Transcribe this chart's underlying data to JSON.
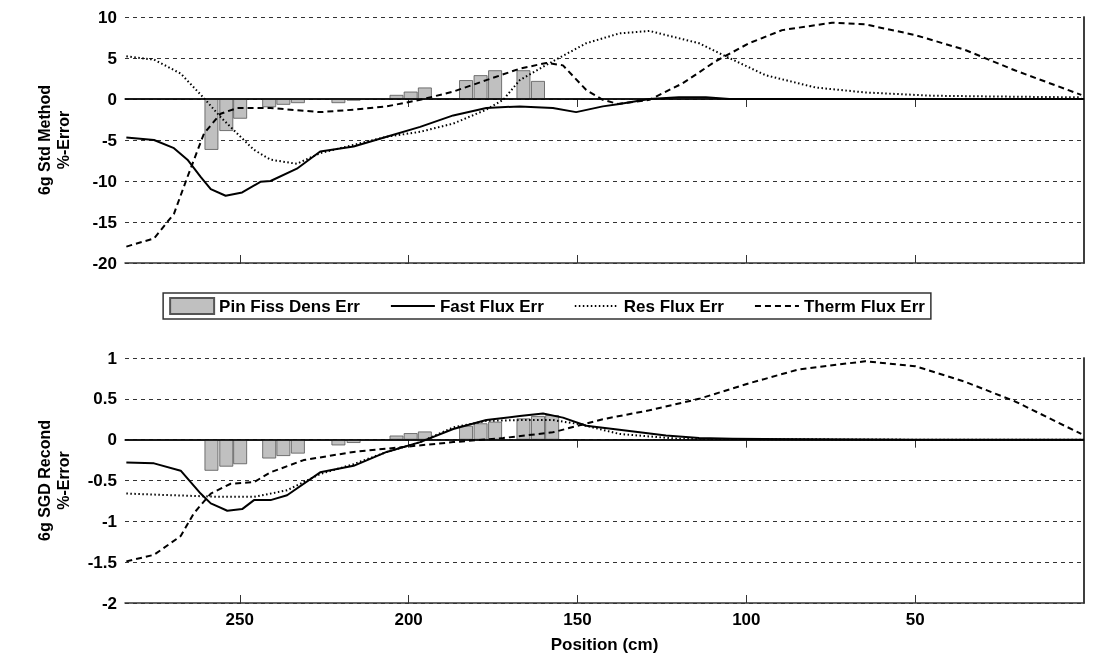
{
  "chart_data": [
    {
      "type": "line",
      "ylabel": "6g Std Method\n%-Error",
      "xlim": [
        284,
        0
      ],
      "xticks": [
        250,
        200,
        150,
        100,
        50
      ],
      "ylim": [
        -20,
        10
      ],
      "yticks": [
        -20,
        -15,
        -10,
        -5,
        0,
        5,
        10
      ],
      "grid": "y",
      "tick_labels": "y",
      "legend": "bottom",
      "marker": "none",
      "ref_lines": [
        {
          "axis": "y",
          "value": 0,
          "color": "#000000",
          "line_style": "solid"
        }
      ],
      "series": [
        {
          "name": "Pin Fiss Dens Err",
          "type": "bar",
          "color": "#c0c0c0",
          "x": [
            258.4,
            254.0,
            249.9,
            241.3,
            237.1,
            232.8,
            220.8,
            216.3,
            203.6,
            199.4,
            195.2,
            183.0,
            178.7,
            174.4,
            166.0,
            161.7,
            157.5
          ],
          "values": [
            -6.2,
            -3.9,
            -2.4,
            -1.0,
            -0.7,
            -0.5,
            -0.5,
            -0.2,
            0.5,
            0.9,
            1.4,
            2.3,
            2.9,
            3.5,
            3.5,
            2.2,
            0.1
          ]
        },
        {
          "name": "Fast Flux Err",
          "color": "#000000",
          "line_style": "solid",
          "x": [
            283.6,
            275.4,
            269.5,
            265.5,
            261.6,
            258.6,
            254.2,
            249.3,
            243.9,
            240.9,
            233.1,
            226.2,
            216.3,
            206.5,
            196.6,
            186.8,
            177.0,
            167.1,
            157.3,
            150.4,
            142.5,
            137.6,
            128.7,
            120,
            112,
            105,
            50,
            0
          ],
          "values": [
            -4.7,
            -5.0,
            -6.0,
            -7.4,
            -9.5,
            -11.0,
            -11.8,
            -11.4,
            -10.1,
            -10.0,
            -8.5,
            -6.4,
            -5.8,
            -4.6,
            -3.4,
            -2.0,
            -1.1,
            -0.9,
            -1.1,
            -1.6,
            -0.9,
            -0.6,
            0,
            0.2,
            0.2,
            0,
            0,
            0
          ]
        },
        {
          "name": "Res Flux Err",
          "color": "#000000",
          "line_style": "dotted",
          "x": [
            283.6,
            275.4,
            267.5,
            260.6,
            255.7,
            250.8,
            245.8,
            240.9,
            233.1,
            226.2,
            216.3,
            206.5,
            196.6,
            186.8,
            177.0,
            172.0,
            167.1,
            157.3,
            147.4,
            137.6,
            128.7,
            114,
            106.1,
            94.3,
            79.5,
            64.8,
            45.1,
            25.4,
            0.8
          ],
          "values": [
            5.2,
            4.8,
            3.1,
            0.1,
            -2.2,
            -4.2,
            -6.2,
            -7.4,
            -7.9,
            -6.6,
            -5.6,
            -4.6,
            -4.0,
            -3.0,
            -1.3,
            -0.1,
            2.3,
            4.6,
            6.8,
            8.0,
            8.3,
            6.8,
            5.2,
            2.9,
            1.4,
            0.8,
            0.4,
            0.3,
            0.2
          ]
        },
        {
          "name": "Therm Flux Err",
          "color": "#000000",
          "line_style": "dashed",
          "x": [
            283.6,
            275.4,
            269.5,
            265.5,
            260.6,
            255.7,
            250.8,
            240.9,
            226.2,
            216.3,
            206.5,
            196.6,
            186.8,
            177.0,
            167.1,
            159.2,
            154.3,
            147.4,
            142.5,
            138,
            128.7,
            118.9,
            109.1,
            99.2,
            89.4,
            74.6,
            64.8,
            50.0,
            35.3,
            20.5,
            0.8
          ],
          "values": [
            -18.0,
            -17.0,
            -14.0,
            -9.5,
            -4.2,
            -1.8,
            -1.1,
            -1.1,
            -1.6,
            -1.3,
            -0.9,
            -0.1,
            0.9,
            2.3,
            3.7,
            4.4,
            4.1,
            1.1,
            -0.1,
            -0.6,
            -0.1,
            1.9,
            4.6,
            6.8,
            8.4,
            9.3,
            9.1,
            7.8,
            6.0,
            3.5,
            0.5
          ]
        }
      ]
    },
    {
      "type": "line",
      "ylabel": "6g SGD Recond\n%-Error",
      "xlabel": "Position (cm)",
      "xlim": [
        284,
        0
      ],
      "xticks": [
        250,
        200,
        150,
        100,
        50
      ],
      "ylim": [
        -2,
        1
      ],
      "yticks": [
        -2,
        -1.5,
        -1,
        -0.5,
        0,
        0.5,
        1
      ],
      "grid": "y",
      "marker": "none",
      "ref_lines": [
        {
          "axis": "y",
          "value": 0,
          "color": "#000000",
          "line_style": "solid"
        }
      ],
      "series": [
        {
          "type": "bar",
          "color": "#c0c0c0",
          "x": [
            258.4,
            254.0,
            249.9,
            241.3,
            237.1,
            232.8,
            220.8,
            216.3,
            203.6,
            199.4,
            195.2,
            183.0,
            178.7,
            174.4,
            166.0,
            161.7,
            157.5
          ],
          "values": [
            -0.38,
            -0.33,
            -0.3,
            -0.23,
            -0.2,
            -0.17,
            -0.07,
            -0.04,
            0.05,
            0.08,
            0.1,
            0.17,
            0.2,
            0.22,
            0.26,
            0.29,
            0.3
          ]
        },
        {
          "color": "#000000",
          "line_style": "solid",
          "x": [
            283.6,
            275.4,
            267.5,
            261.6,
            258.6,
            253.7,
            249.3,
            245.8,
            240.9,
            236.0,
            226.2,
            216.3,
            206.5,
            196.6,
            186.8,
            177.0,
            167.1,
            160.2,
            154.3,
            147.4,
            137.6,
            123.8,
            114,
            104.1,
            50,
            0
          ],
          "values": [
            -0.28,
            -0.29,
            -0.38,
            -0.66,
            -0.78,
            -0.87,
            -0.85,
            -0.74,
            -0.74,
            -0.68,
            -0.4,
            -0.32,
            -0.15,
            -0.03,
            0.13,
            0.24,
            0.29,
            0.32,
            0.27,
            0.17,
            0.12,
            0.05,
            0.02,
            0.01,
            0,
            0
          ]
        },
        {
          "color": "#000000",
          "line_style": "dotted",
          "x": [
            283.6,
            270.4,
            255.7,
            245.8,
            236.0,
            226.2,
            216.3,
            206.5,
            196.6,
            186.8,
            177.0,
            167.1,
            157.3,
            149.4,
            137.6,
            120,
            50,
            0
          ],
          "values": [
            -0.66,
            -0.68,
            -0.7,
            -0.7,
            -0.62,
            -0.42,
            -0.3,
            -0.15,
            -0.03,
            0.15,
            0.23,
            0.24,
            0.24,
            0.19,
            0.07,
            0.01,
            0,
            0
          ]
        },
        {
          "color": "#000000",
          "line_style": "dashed",
          "x": [
            283.6,
            275.4,
            267.5,
            263.6,
            258.6,
            252.7,
            245.8,
            240.9,
            231.1,
            216.3,
            201.6,
            186.8,
            172.0,
            157.3,
            142.5,
            128.7,
            114,
            99.2,
            84.5,
            64.8,
            50.0,
            35.3,
            20.5,
            0.8
          ],
          "values": [
            -1.49,
            -1.41,
            -1.18,
            -0.9,
            -0.66,
            -0.54,
            -0.52,
            -0.4,
            -0.25,
            -0.15,
            -0.09,
            -0.03,
            0.02,
            0.09,
            0.25,
            0.36,
            0.5,
            0.69,
            0.86,
            0.96,
            0.9,
            0.71,
            0.47,
            0.07
          ]
        }
      ]
    }
  ]
}
